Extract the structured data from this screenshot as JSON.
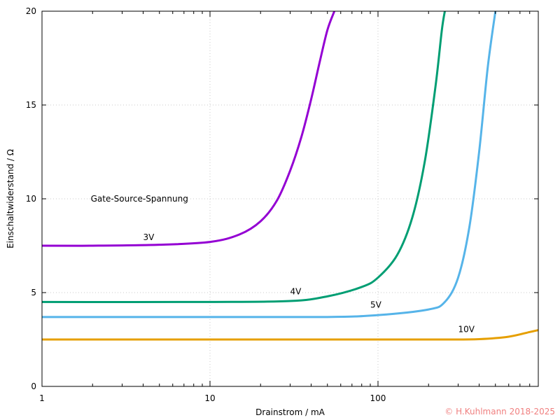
{
  "chart_data": {
    "type": "line",
    "title": "",
    "xlabel": "Drainstrom / mA",
    "ylabel": "Einschaltwiderstand / Ω",
    "xscale": "log",
    "xlim": [
      1,
      900
    ],
    "ylim": [
      0,
      20
    ],
    "xticks": [
      {
        "value": 1,
        "label": "1"
      },
      {
        "value": 10,
        "label": "10"
      },
      {
        "value": 100,
        "label": "100"
      }
    ],
    "yticks": [
      {
        "value": 0,
        "label": "0"
      },
      {
        "value": 5,
        "label": "5"
      },
      {
        "value": 10,
        "label": "10"
      },
      {
        "value": 15,
        "label": "15"
      },
      {
        "value": 20,
        "label": "20"
      }
    ],
    "grid": true,
    "legend_title": "Gate-Source-Spannung",
    "series": [
      {
        "name": "3V",
        "color": "#9400d3",
        "x": [
          1,
          2,
          5,
          10,
          15,
          20,
          25,
          30,
          35,
          40,
          45,
          50,
          55
        ],
        "y": [
          7.5,
          7.5,
          7.55,
          7.7,
          8.1,
          8.8,
          9.9,
          11.5,
          13.3,
          15.3,
          17.3,
          19.0,
          20.0
        ]
      },
      {
        "name": "4V",
        "color": "#009e73",
        "x": [
          1,
          10,
          30,
          50,
          80,
          100,
          130,
          160,
          190,
          220,
          240,
          250
        ],
        "y": [
          4.5,
          4.5,
          4.55,
          4.8,
          5.3,
          5.8,
          7.0,
          9.0,
          12.0,
          16.0,
          19.0,
          20.0
        ]
      },
      {
        "name": "5V",
        "color": "#56b4e9",
        "x": [
          1,
          10,
          50,
          100,
          200,
          250,
          300,
          350,
          400,
          450,
          500
        ],
        "y": [
          3.7,
          3.7,
          3.7,
          3.8,
          4.1,
          4.5,
          5.8,
          8.5,
          12.5,
          17.0,
          20.0
        ]
      },
      {
        "name": "10V",
        "color": "#e69f00",
        "x": [
          1,
          10,
          100,
          250,
          400,
          600,
          800,
          900
        ],
        "y": [
          2.5,
          2.5,
          2.5,
          2.5,
          2.52,
          2.65,
          2.9,
          3.0
        ]
      }
    ],
    "annotations": [
      {
        "text": "3V",
        "x": 4.0,
        "y": 7.8
      },
      {
        "text": "4V",
        "x": 30,
        "y": 4.9
      },
      {
        "text": "5V",
        "x": 90,
        "y": 4.2
      },
      {
        "text": "10V",
        "x": 300,
        "y": 2.9
      }
    ]
  },
  "copyright": "© H.Kuhlmann 2018-2025"
}
